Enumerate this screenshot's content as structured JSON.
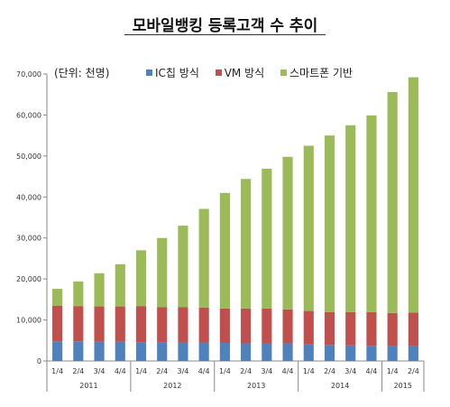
{
  "colors": {
    "ic": "#4f81bd",
    "vm": "#c0504d",
    "smart": "#9bbb59"
  },
  "chart_data": {
    "type": "bar",
    "stacked": true,
    "title": "모바일뱅킹 등록고객 수 추이",
    "unit_label": "(단위: 천명)",
    "quarters": [
      "1/4",
      "2/4",
      "3/4",
      "4/4",
      "1/4",
      "2/4",
      "3/4",
      "4/4",
      "1/4",
      "2/4",
      "3/4",
      "4/4",
      "1/4",
      "2/4",
      "3/4",
      "4/4",
      "1/4",
      "2/4"
    ],
    "years": [
      {
        "label": "2011",
        "span": [
          0,
          3
        ]
      },
      {
        "label": "2012",
        "span": [
          4,
          7
        ]
      },
      {
        "label": "2013",
        "span": [
          8,
          11
        ]
      },
      {
        "label": "2014",
        "span": [
          12,
          15
        ]
      },
      {
        "label": "2015",
        "span": [
          16,
          17
        ]
      }
    ],
    "series": [
      {
        "name": "IC칩 방식",
        "key": "ic",
        "values": [
          4800,
          4800,
          4700,
          4700,
          4600,
          4600,
          4500,
          4500,
          4400,
          4300,
          4300,
          4300,
          4000,
          3900,
          3800,
          3700,
          3600,
          3600
        ]
      },
      {
        "name": "VM 방식",
        "key": "vm",
        "values": [
          8700,
          8600,
          8600,
          8600,
          8800,
          8500,
          8600,
          8500,
          8400,
          8500,
          8500,
          8300,
          8200,
          8000,
          8100,
          8200,
          8100,
          8200
        ]
      },
      {
        "name": "스마트폰 기반",
        "key": "smart",
        "values": [
          4100,
          6000,
          8100,
          10300,
          13600,
          16900,
          19900,
          24100,
          28200,
          31600,
          34100,
          37200,
          40300,
          43100,
          45600,
          48000,
          53900,
          57400
        ]
      }
    ],
    "ylim": [
      0,
      70000
    ],
    "yticks": [
      0,
      10000,
      20000,
      30000,
      40000,
      50000,
      60000,
      70000
    ],
    "ytick_labels": [
      "0",
      "10,000",
      "20,000",
      "30,000",
      "40,000",
      "50,000",
      "60,000",
      "70,000"
    ],
    "grid": false,
    "legend_position": "top"
  }
}
